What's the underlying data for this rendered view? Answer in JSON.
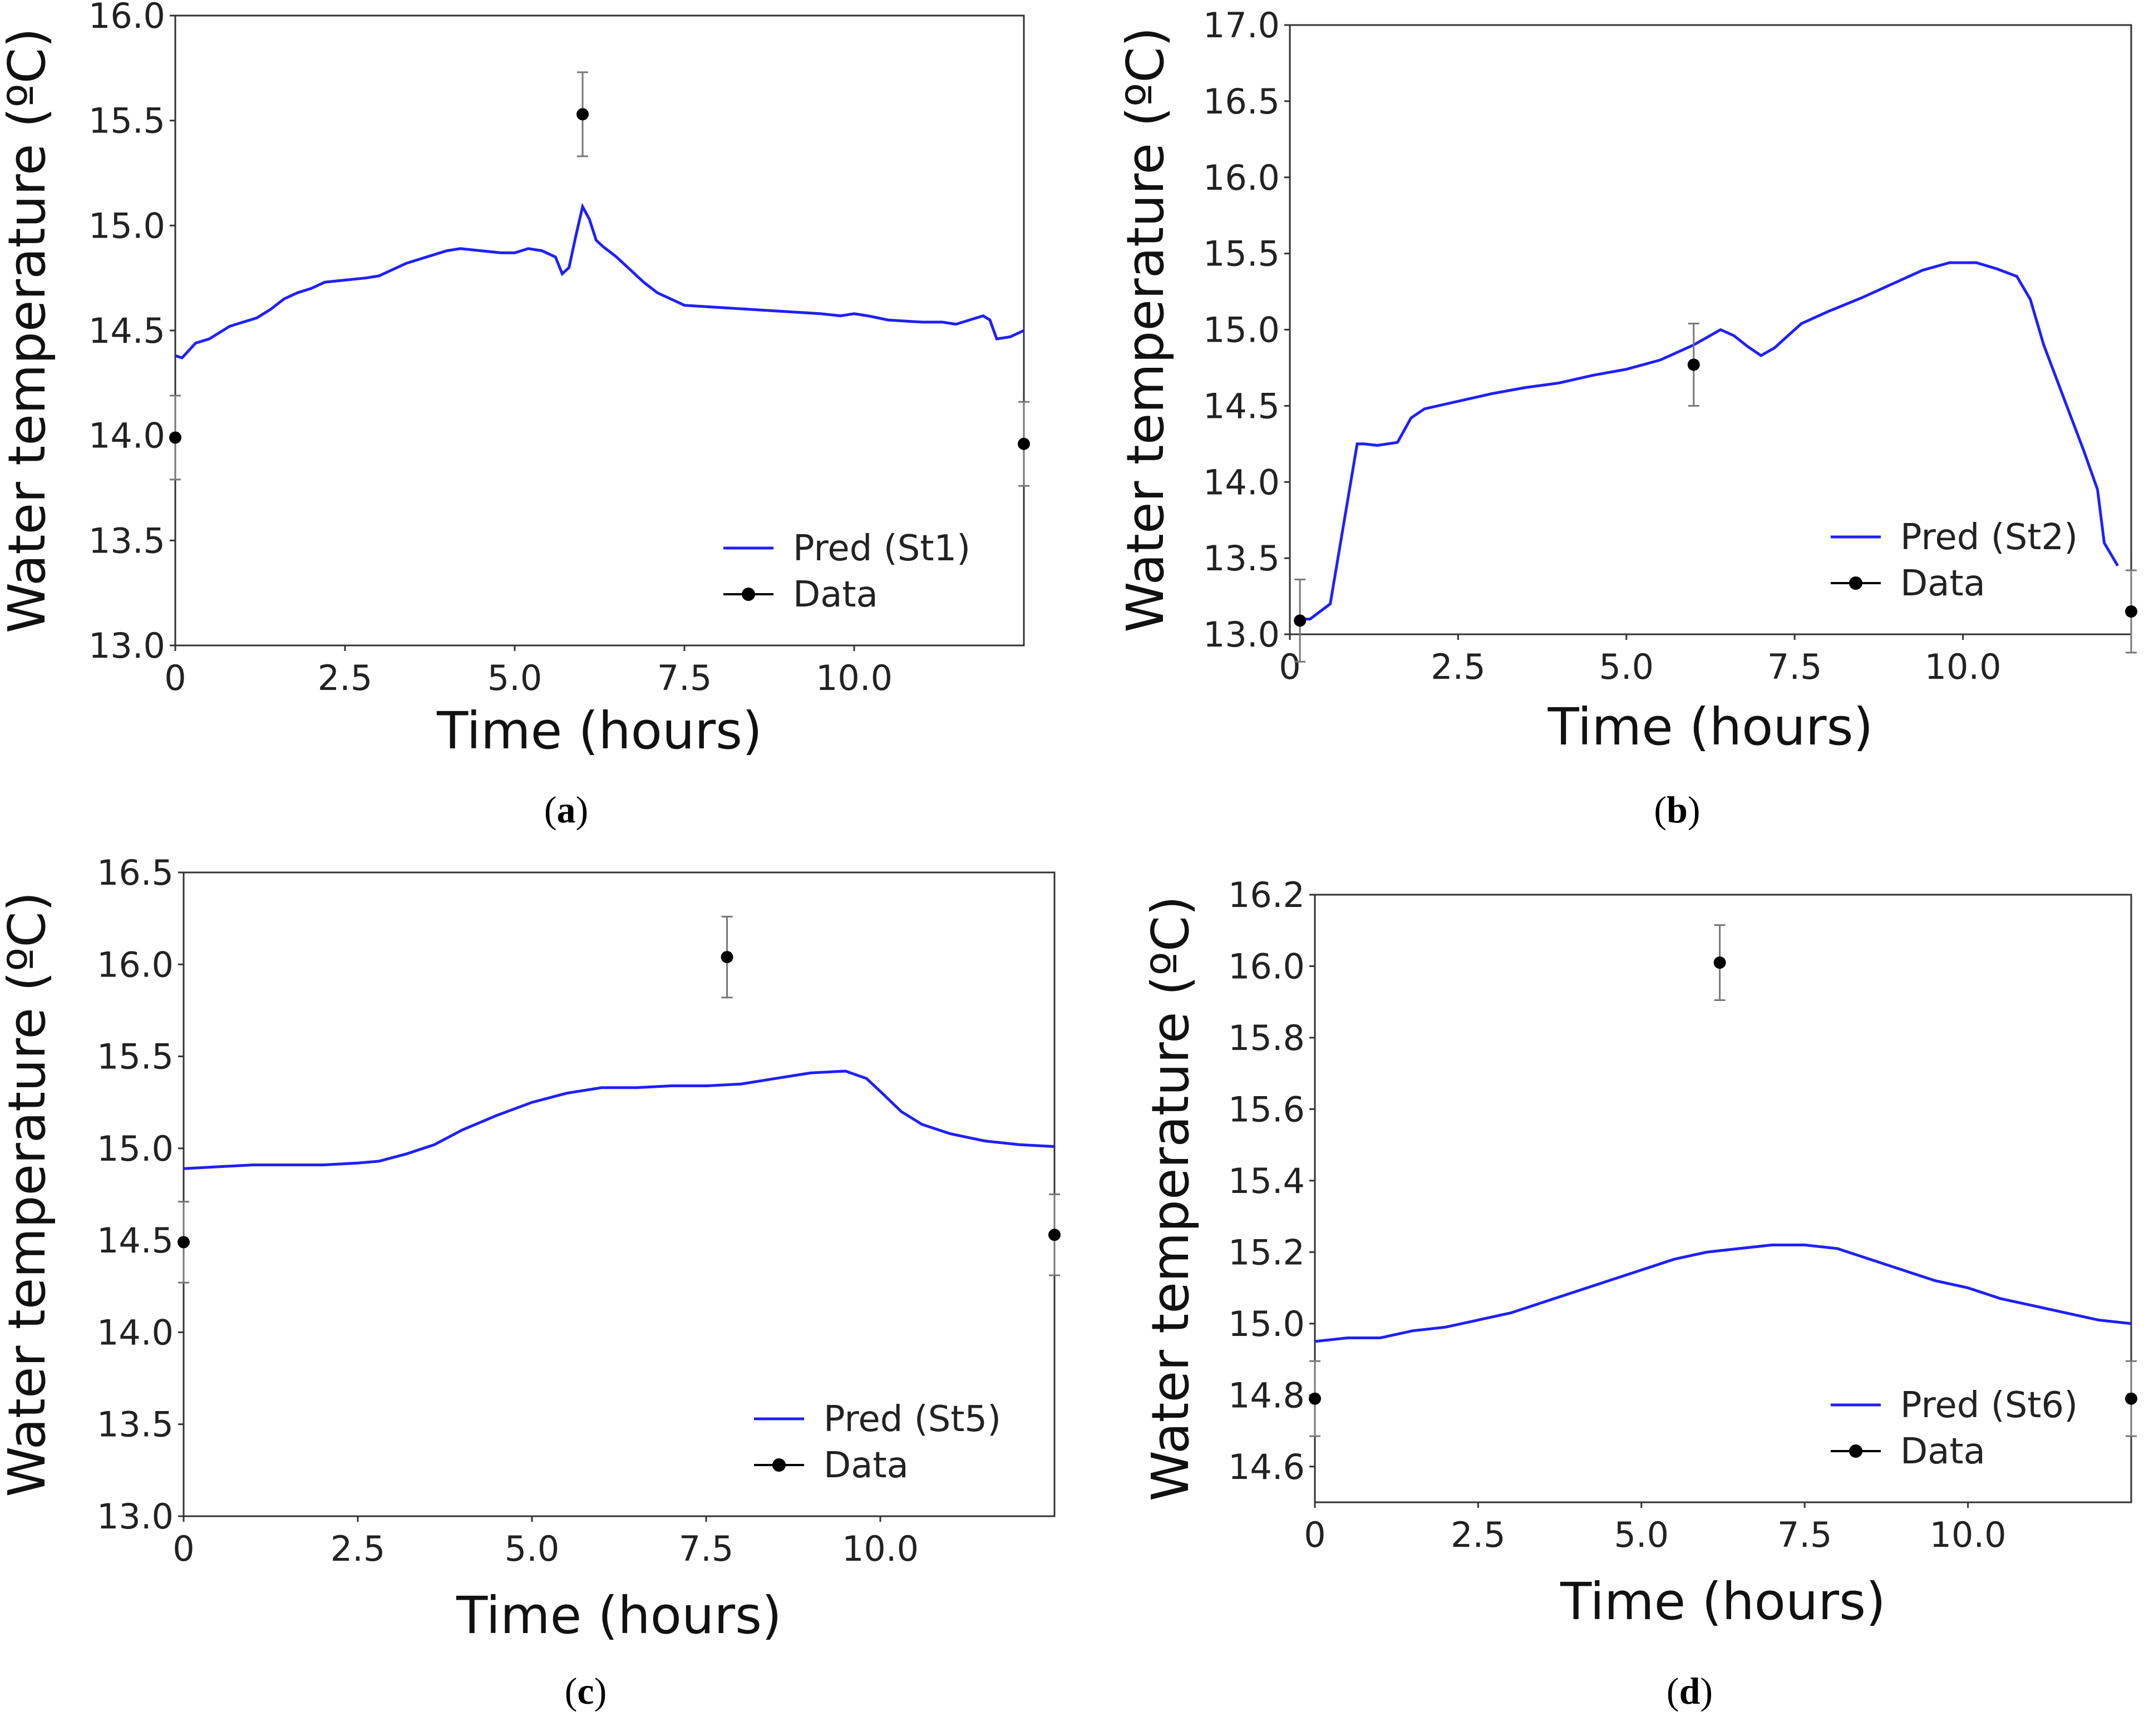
{
  "figure": {
    "chart_data": [
      {
        "panel_label": "a",
        "type": "line",
        "xlabel": "Time (hours)",
        "ylabel": "Water temperature (ºC)",
        "xlim": [
          0,
          12.5
        ],
        "ylim": [
          13.0,
          16.0
        ],
        "x_ticks": [
          0,
          2.5,
          5.0,
          7.5,
          10.0
        ],
        "x_tick_labels": [
          "0",
          "2.5",
          "5.0",
          "7.5",
          "10.0"
        ],
        "y_ticks": [
          13.0,
          13.5,
          14.0,
          14.5,
          15.0,
          15.5,
          16.0
        ],
        "y_tick_labels": [
          "13.0",
          "13.5",
          "14.0",
          "14.5",
          "15.0",
          "15.5",
          "16.0"
        ],
        "legend_position": "lower-right",
        "series": [
          {
            "name": "Pred (St1)",
            "color": "#1f1fff",
            "kind": "line",
            "x": [
              0,
              0.1,
              0.3,
              0.5,
              0.8,
              1.0,
              1.2,
              1.4,
              1.6,
              1.8,
              2.0,
              2.2,
              2.5,
              2.8,
              3.0,
              3.2,
              3.4,
              3.6,
              3.8,
              4.0,
              4.2,
              4.5,
              4.8,
              5.0,
              5.2,
              5.4,
              5.6,
              5.7,
              5.8,
              5.9,
              6.0,
              6.1,
              6.2,
              6.3,
              6.5,
              6.7,
              6.9,
              7.1,
              7.3,
              7.5,
              8.0,
              8.5,
              9.0,
              9.5,
              9.8,
              10.0,
              10.2,
              10.5,
              11.0,
              11.3,
              11.5,
              11.7,
              11.9,
              12.0,
              12.1,
              12.3,
              12.5
            ],
            "y": [
              14.38,
              14.37,
              14.44,
              14.46,
              14.52,
              14.54,
              14.56,
              14.6,
              14.65,
              14.68,
              14.7,
              14.73,
              14.74,
              14.75,
              14.76,
              14.79,
              14.82,
              14.84,
              14.86,
              14.88,
              14.89,
              14.88,
              14.87,
              14.87,
              14.89,
              14.88,
              14.85,
              14.77,
              14.8,
              14.95,
              15.09,
              15.03,
              14.93,
              14.9,
              14.85,
              14.79,
              14.73,
              14.68,
              14.65,
              14.62,
              14.61,
              14.6,
              14.59,
              14.58,
              14.57,
              14.58,
              14.57,
              14.55,
              14.54,
              14.54,
              14.53,
              14.55,
              14.57,
              14.55,
              14.46,
              14.47,
              14.5
            ]
          },
          {
            "name": "Data",
            "color": "#000000",
            "kind": "points",
            "x": [
              0,
              6.0,
              12.5
            ],
            "y": [
              13.99,
              15.53,
              13.96
            ],
            "error": [
              0.2,
              0.2,
              0.2
            ]
          }
        ]
      },
      {
        "panel_label": "b",
        "type": "line",
        "xlabel": "Time (hours)",
        "ylabel": "Water temperature (ºC)",
        "xlim": [
          0,
          12.5
        ],
        "ylim": [
          13.0,
          17.0
        ],
        "x_ticks": [
          0,
          2.5,
          5.0,
          7.5,
          10.0
        ],
        "x_tick_labels": [
          "0",
          "2.5",
          "5.0",
          "7.5",
          "10.0"
        ],
        "y_ticks": [
          13.0,
          13.5,
          14.0,
          14.5,
          15.0,
          15.5,
          16.0,
          16.5,
          17.0
        ],
        "y_tick_labels": [
          "13.0",
          "13.5",
          "14.0",
          "14.5",
          "15.0",
          "15.5",
          "16.0",
          "16.5",
          "17.0"
        ],
        "legend_position": "lower-right",
        "series": [
          {
            "name": "Pred (St2)",
            "color": "#1f1fff",
            "kind": "line",
            "x": [
              0.15,
              0.3,
              0.6,
              1.0,
              1.1,
              1.3,
              1.6,
              1.8,
              2.0,
              2.5,
              3.0,
              3.5,
              4.0,
              4.5,
              5.0,
              5.5,
              5.8,
              6.0,
              6.2,
              6.4,
              6.6,
              6.8,
              7.0,
              7.2,
              7.4,
              7.6,
              7.8,
              8.0,
              8.5,
              9.0,
              9.4,
              9.8,
              10.2,
              10.5,
              10.8,
              11.0,
              11.2,
              11.5,
              11.8,
              12.0,
              12.1,
              12.3
            ],
            "y": [
              13.1,
              13.1,
              13.2,
              14.25,
              14.25,
              14.24,
              14.26,
              14.42,
              14.48,
              14.53,
              14.58,
              14.62,
              14.65,
              14.7,
              14.74,
              14.8,
              14.86,
              14.9,
              14.95,
              15.0,
              14.96,
              14.89,
              14.83,
              14.88,
              14.96,
              15.04,
              15.08,
              15.12,
              15.21,
              15.31,
              15.39,
              15.44,
              15.44,
              15.4,
              15.35,
              15.2,
              14.9,
              14.55,
              14.2,
              13.95,
              13.6,
              13.45
            ]
          },
          {
            "name": "Data",
            "color": "#000000",
            "kind": "points",
            "x": [
              0.15,
              6.0,
              12.5
            ],
            "y": [
              13.09,
              14.77,
              13.15
            ],
            "error": [
              0.27,
              0.27,
              0.27
            ]
          }
        ]
      },
      {
        "panel_label": "c",
        "type": "line",
        "xlabel": "Time (hours)",
        "ylabel": "Water temperature (ºC)",
        "xlim": [
          0,
          12.5
        ],
        "ylim": [
          13.0,
          16.5
        ],
        "x_ticks": [
          0,
          2.5,
          5.0,
          7.5,
          10.0
        ],
        "x_tick_labels": [
          "0",
          "2.5",
          "5.0",
          "7.5",
          "10.0"
        ],
        "y_ticks": [
          13.0,
          13.5,
          14.0,
          14.5,
          15.0,
          15.5,
          16.0,
          16.5
        ],
        "y_tick_labels": [
          "13.0",
          "13.5",
          "14.0",
          "14.5",
          "15.0",
          "15.5",
          "16.0",
          "16.5"
        ],
        "legend_position": "lower-right",
        "series": [
          {
            "name": "Pred (St5)",
            "color": "#1f1fff",
            "kind": "line",
            "x": [
              0,
              0.5,
              1.0,
              1.5,
              2.0,
              2.5,
              2.8,
              3.2,
              3.6,
              4.0,
              4.5,
              5.0,
              5.5,
              6.0,
              6.5,
              7.0,
              7.5,
              8.0,
              8.5,
              9.0,
              9.5,
              9.8,
              10.0,
              10.3,
              10.6,
              11.0,
              11.5,
              12.0,
              12.5
            ],
            "y": [
              14.89,
              14.9,
              14.91,
              14.91,
              14.91,
              14.92,
              14.93,
              14.97,
              15.02,
              15.1,
              15.18,
              15.25,
              15.3,
              15.33,
              15.33,
              15.34,
              15.34,
              15.35,
              15.38,
              15.41,
              15.42,
              15.38,
              15.31,
              15.2,
              15.13,
              15.08,
              15.04,
              15.02,
              15.01
            ]
          },
          {
            "name": "Data",
            "color": "#000000",
            "kind": "points",
            "x": [
              0,
              7.8,
              12.5
            ],
            "y": [
              14.49,
              16.04,
              14.53
            ],
            "error": [
              0.22,
              0.22,
              0.22
            ]
          }
        ]
      },
      {
        "panel_label": "d",
        "type": "line",
        "xlabel": "Time (hours)",
        "ylabel": "Water temperature (ºC)",
        "xlim": [
          0,
          12.5
        ],
        "ylim": [
          14.5,
          16.2
        ],
        "x_ticks": [
          0,
          2.5,
          5.0,
          7.5,
          10.0
        ],
        "x_tick_labels": [
          "0",
          "2.5",
          "5.0",
          "7.5",
          "10.0"
        ],
        "y_ticks": [
          14.6,
          14.8,
          15.0,
          15.2,
          15.4,
          15.6,
          15.8,
          16.0,
          16.2
        ],
        "y_tick_labels": [
          "14.6",
          "14.8",
          "15.0",
          "15.2",
          "15.4",
          "15.6",
          "15.8",
          "16.0",
          "16.2"
        ],
        "legend_position": "lower-right",
        "series": [
          {
            "name": "Pred (St6)",
            "color": "#1f1fff",
            "kind": "line",
            "x": [
              0,
              0.5,
              1.0,
              1.5,
              2.0,
              2.5,
              3.0,
              3.5,
              4.0,
              4.5,
              5.0,
              5.5,
              6.0,
              6.5,
              7.0,
              7.5,
              8.0,
              8.5,
              9.0,
              9.5,
              10.0,
              10.5,
              11.0,
              11.5,
              12.0,
              12.5
            ],
            "y": [
              14.95,
              14.96,
              14.96,
              14.98,
              14.99,
              15.01,
              15.03,
              15.06,
              15.09,
              15.12,
              15.15,
              15.18,
              15.2,
              15.21,
              15.22,
              15.22,
              15.21,
              15.18,
              15.15,
              15.12,
              15.1,
              15.07,
              15.05,
              15.03,
              15.01,
              15.0
            ]
          },
          {
            "name": "Data",
            "color": "#000000",
            "kind": "points",
            "x": [
              0,
              6.2,
              12.5
            ],
            "y": [
              14.79,
              16.01,
              14.79
            ],
            "error": [
              0.105,
              0.105,
              0.105
            ]
          }
        ]
      }
    ]
  }
}
